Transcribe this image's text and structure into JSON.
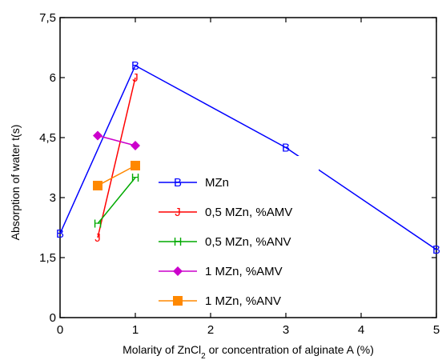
{
  "chart_data": {
    "type": "line",
    "xlabel_main": "Molarity of ZnCl",
    "xlabel_sub": "2",
    "xlabel_rest": " or concentration of alginate A (%)",
    "ylabel": "Absorption of water t(s)",
    "xlim": [
      0,
      5
    ],
    "ylim": [
      0,
      7.5
    ],
    "x_ticks": [
      "0",
      "1",
      "2",
      "3",
      "4",
      "5"
    ],
    "y_ticks": [
      "0",
      "1,5",
      "3",
      "4,5",
      "6",
      "7,5"
    ],
    "grid": false,
    "legend_position": "center",
    "series": [
      {
        "name": "MZn",
        "marker": "B",
        "color": "#0000ff",
        "points": [
          [
            0,
            2.1
          ],
          [
            1,
            6.3
          ],
          [
            3,
            4.25
          ],
          [
            5,
            1.7
          ]
        ]
      },
      {
        "name": "0,5 MZn, %AMV",
        "marker": "J",
        "color": "#ff0000",
        "points": [
          [
            0.5,
            2.0
          ],
          [
            1,
            6.0
          ]
        ]
      },
      {
        "name": "0,5 MZn, %ANV",
        "marker": "H",
        "color": "#00aa00",
        "points": [
          [
            0.5,
            2.35
          ],
          [
            1,
            3.5
          ]
        ]
      },
      {
        "name": "1 MZn, %AMV",
        "marker": "diamond",
        "color": "#cc00cc",
        "points": [
          [
            0.5,
            4.55
          ],
          [
            1,
            4.3
          ]
        ]
      },
      {
        "name": "1 MZn, %ANV",
        "marker": "square",
        "color": "#ff8800",
        "points": [
          [
            0.5,
            3.3
          ],
          [
            1,
            3.8
          ]
        ]
      }
    ]
  }
}
